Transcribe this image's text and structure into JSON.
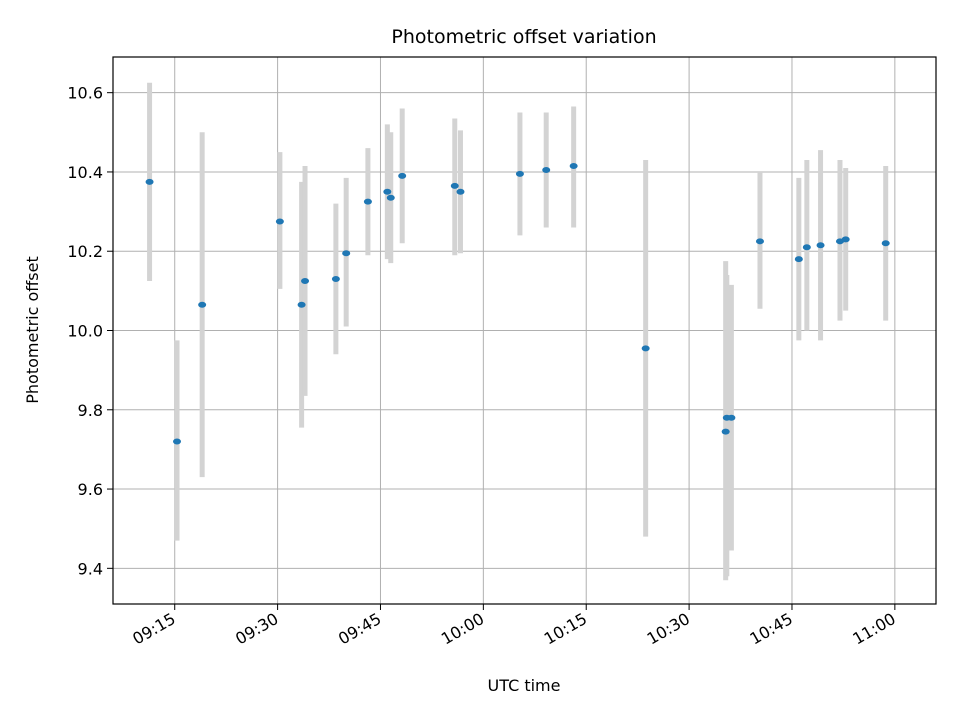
{
  "chart_data": {
    "type": "scatter",
    "title": "Photometric offset variation",
    "xlabel": "UTC time",
    "ylabel": "Photometric offset",
    "x_is_time": true,
    "xlim": [
      "09:06",
      "11:06"
    ],
    "ylim": [
      9.31,
      10.69
    ],
    "x_ticks": [
      "09:15",
      "09:30",
      "09:45",
      "10:00",
      "10:15",
      "10:30",
      "10:45",
      "11:00"
    ],
    "y_ticks": [
      9.4,
      9.6,
      9.8,
      10.0,
      10.2,
      10.4,
      10.6
    ],
    "grid": true,
    "colors": {
      "point": "#1f77b4",
      "errorbar": "#d3d3d3",
      "grid": "#b0b0b0",
      "axes": "#000000"
    },
    "points": [
      {
        "x": "09:11:20",
        "y": 10.375,
        "ylo": 10.125,
        "yhi": 10.625
      },
      {
        "x": "09:15:20",
        "y": 9.72,
        "ylo": 9.47,
        "yhi": 9.975
      },
      {
        "x": "09:19:00",
        "y": 10.065,
        "ylo": 9.63,
        "yhi": 10.5
      },
      {
        "x": "09:30:20",
        "y": 10.275,
        "ylo": 10.105,
        "yhi": 10.45
      },
      {
        "x": "09:33:30",
        "y": 10.065,
        "ylo": 9.755,
        "yhi": 10.375
      },
      {
        "x": "09:34:00",
        "y": 10.125,
        "ylo": 9.835,
        "yhi": 10.415
      },
      {
        "x": "09:38:30",
        "y": 10.13,
        "ylo": 9.94,
        "yhi": 10.32
      },
      {
        "x": "09:40:00",
        "y": 10.195,
        "ylo": 10.01,
        "yhi": 10.385
      },
      {
        "x": "09:43:10",
        "y": 10.325,
        "ylo": 10.19,
        "yhi": 10.46
      },
      {
        "x": "09:46:00",
        "y": 10.35,
        "ylo": 10.18,
        "yhi": 10.52
      },
      {
        "x": "09:46:30",
        "y": 10.335,
        "ylo": 10.17,
        "yhi": 10.5
      },
      {
        "x": "09:48:10",
        "y": 10.39,
        "ylo": 10.22,
        "yhi": 10.56
      },
      {
        "x": "09:55:50",
        "y": 10.365,
        "ylo": 10.19,
        "yhi": 10.535
      },
      {
        "x": "09:56:40",
        "y": 10.35,
        "ylo": 10.195,
        "yhi": 10.505
      },
      {
        "x": "10:05:20",
        "y": 10.395,
        "ylo": 10.24,
        "yhi": 10.55
      },
      {
        "x": "10:09:10",
        "y": 10.405,
        "ylo": 10.26,
        "yhi": 10.55
      },
      {
        "x": "10:13:10",
        "y": 10.415,
        "ylo": 10.26,
        "yhi": 10.565
      },
      {
        "x": "10:23:40",
        "y": 9.955,
        "ylo": 9.48,
        "yhi": 10.43
      },
      {
        "x": "10:35:20",
        "y": 9.745,
        "ylo": 9.37,
        "yhi": 10.175
      },
      {
        "x": "10:35:30",
        "y": 9.78,
        "ylo": 9.38,
        "yhi": 10.14
      },
      {
        "x": "10:36:10",
        "y": 9.78,
        "ylo": 9.445,
        "yhi": 10.115
      },
      {
        "x": "10:40:20",
        "y": 10.225,
        "ylo": 10.055,
        "yhi": 10.4
      },
      {
        "x": "10:46:00",
        "y": 10.18,
        "ylo": 9.975,
        "yhi": 10.385
      },
      {
        "x": "10:47:10",
        "y": 10.21,
        "ylo": 10.0,
        "yhi": 10.43
      },
      {
        "x": "10:49:10",
        "y": 10.215,
        "ylo": 9.975,
        "yhi": 10.455
      },
      {
        "x": "10:52:00",
        "y": 10.225,
        "ylo": 10.025,
        "yhi": 10.43
      },
      {
        "x": "10:52:50",
        "y": 10.23,
        "ylo": 10.05,
        "yhi": 10.41
      },
      {
        "x": "10:58:40",
        "y": 10.22,
        "ylo": 10.025,
        "yhi": 10.415
      }
    ]
  }
}
